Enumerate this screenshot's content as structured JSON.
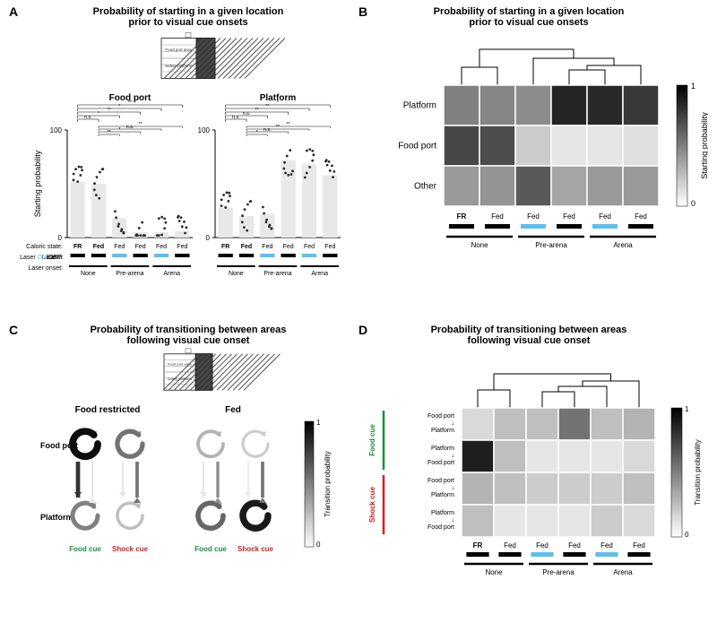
{
  "panelA": {
    "label": "A",
    "title": "Probability of starting in a given location\nprior to visual cue onsets",
    "arena_labels": [
      "Food port area",
      "Safety platform"
    ],
    "chart_titles": [
      "Food port",
      "Platform"
    ],
    "y_label": "Starting probability",
    "y_ticks": [
      0,
      100
    ],
    "caloric_state_label": "Caloric state:",
    "laser_toggle_label": "Laser ON/OFF:",
    "laser_onset_label": "Laser onset:",
    "conditions": [
      "FR",
      "Fed",
      "Fed",
      "Fed",
      "Fed",
      "Fed"
    ],
    "laser_colors": [
      "#000000",
      "#000000",
      "#5bc0f0",
      "#000000",
      "#5bc0f0",
      "#000000"
    ],
    "onset_groups": [
      "None",
      "Pre-arena",
      "Arena"
    ],
    "bar_color": "#e8e8e8",
    "foodport_bars": [
      52,
      50,
      18,
      5,
      5,
      6
    ],
    "platform_bars": [
      28,
      20,
      22,
      72,
      68,
      58
    ],
    "foodport_sig": [
      "n.s.",
      "*",
      "**",
      "*",
      "**",
      "*",
      "n.s.",
      "**",
      "*",
      "**",
      "*"
    ],
    "platform_sig": [
      "n.s.",
      "n.s.",
      "**",
      "**",
      "*",
      "n.s.",
      "**",
      "**",
      "*",
      "n.s."
    ],
    "dot_color": "#2a2a2a"
  },
  "panelB": {
    "label": "B",
    "title": "Probability of starting in a given location\nprior to visual cue onsets",
    "rows": [
      "Platform",
      "Food  port",
      "Other"
    ],
    "cols": [
      "FR",
      "Fed",
      "Fed",
      "Fed",
      "Fed",
      "Fed"
    ],
    "laser_colors": [
      "#000000",
      "#000000",
      "#5bc0f0",
      "#000000",
      "#5bc0f0",
      "#000000"
    ],
    "onset_groups": [
      "None",
      "Pre-arena",
      "Arena"
    ],
    "heatmap": [
      [
        0.5,
        0.48,
        0.45,
        0.86,
        0.84,
        0.78
      ],
      [
        0.72,
        0.7,
        0.2,
        0.1,
        0.1,
        0.12
      ],
      [
        0.4,
        0.42,
        0.65,
        0.35,
        0.4,
        0.4
      ]
    ],
    "colorbar_label": "Starting probability",
    "colorbar_ticks": [
      0,
      1
    ],
    "dendrogram": {
      "leaves": [
        0,
        1,
        2,
        3,
        4,
        5
      ],
      "merges": [
        [
          0,
          1,
          0.15
        ],
        [
          3,
          4,
          0.12
        ],
        [
          5,
          7,
          0.18
        ],
        [
          2,
          8,
          0.3
        ],
        [
          6,
          9,
          0.5
        ]
      ]
    }
  },
  "panelC": {
    "label": "C",
    "title": "Probability of transitioning between areas\nfollowing visual cue onset",
    "arena_labels": [
      "Food port area",
      "Safety platform"
    ],
    "group_titles": [
      "Food restricted",
      "Fed"
    ],
    "row_labels": [
      "Food port",
      "Platform"
    ],
    "cue_labels": [
      "Food cue",
      "Shock cue",
      "Food cue",
      "Shock cue"
    ],
    "cue_colors": [
      "#1a8f3c",
      "#d02020",
      "#1a8f3c",
      "#d02020"
    ],
    "self_loop": {
      "fr_food": [
        0.95,
        0.5
      ],
      "fr_shock": [
        0.55,
        0.25
      ],
      "fed_food": [
        0.3,
        0.6
      ],
      "fed_shock": [
        0.2,
        0.9
      ]
    },
    "up_arrow": {
      "fr_food": 0.8,
      "fr_shock": 0.1,
      "fed_food": 0.1,
      "fed_shock": 0.08
    },
    "down_arrow": {
      "fr_food": 0.1,
      "fr_shock": 0.55,
      "fed_food": 0.45,
      "fed_shock": 0.55
    },
    "colorbar_label": "Transition probability",
    "colorbar_ticks": [
      0,
      1
    ]
  },
  "panelD": {
    "label": "D",
    "title": "Probability of transitioning between areas\nfollowing visual cue onset",
    "rows": [
      "Food port\n↓\nPlatform",
      "Platform\n↓\nFood port",
      "Food port\n↓\nPlatform",
      "Platform\n↓\nFood port"
    ],
    "row_group_labels": [
      "Food cue",
      "Shock cue"
    ],
    "row_group_colors": [
      "#1a8f3c",
      "#d02020"
    ],
    "cols": [
      "FR",
      "Fed",
      "Fed",
      "Fed",
      "Fed",
      "Fed"
    ],
    "laser_colors": [
      "#000000",
      "#000000",
      "#5bc0f0",
      "#000000",
      "#5bc0f0",
      "#000000"
    ],
    "onset_groups": [
      "None",
      "Pre-arena",
      "Arena"
    ],
    "heatmap": [
      [
        0.15,
        0.25,
        0.25,
        0.55,
        0.25,
        0.3
      ],
      [
        0.88,
        0.25,
        0.1,
        0.1,
        0.1,
        0.15
      ],
      [
        0.3,
        0.25,
        0.2,
        0.2,
        0.2,
        0.25
      ],
      [
        0.25,
        0.1,
        0.1,
        0.1,
        0.2,
        0.15
      ]
    ],
    "colorbar_label": "Transition probability",
    "colorbar_ticks": [
      0,
      1
    ]
  },
  "colors": {
    "bg": "#ffffff",
    "cell_border": "#ffffff",
    "text": "#000000",
    "arena_fill": "#f7f7f7",
    "arena_dark": "#333333"
  }
}
